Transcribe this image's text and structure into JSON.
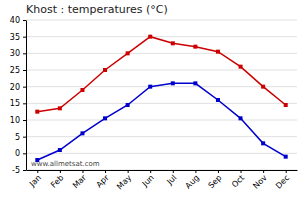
{
  "chart_data": {
    "type": "line",
    "title": "Khost : temperatures (°C)",
    "categories": [
      "Jan",
      "Feb",
      "Mar",
      "Apr",
      "May",
      "Jun",
      "Jul",
      "Aug",
      "Sep",
      "Oct",
      "Nov",
      "Dec"
    ],
    "series": [
      {
        "color": "#cc0000",
        "marker": "square",
        "values": [
          12.5,
          13.5,
          19,
          25,
          30,
          35,
          33,
          32,
          30.5,
          26,
          20,
          14.5
        ]
      },
      {
        "color": "#0000cc",
        "marker": "square",
        "values": [
          -2,
          1,
          6,
          10.5,
          14.5,
          20,
          21,
          21,
          16,
          10.5,
          3,
          -1
        ]
      }
    ],
    "ylim": [
      -5,
      40
    ],
    "yticks": [
      -5,
      0,
      5,
      10,
      15,
      20,
      25,
      30,
      35,
      40
    ],
    "grid": true,
    "annotations": [
      "www.allmetsat.com"
    ]
  }
}
